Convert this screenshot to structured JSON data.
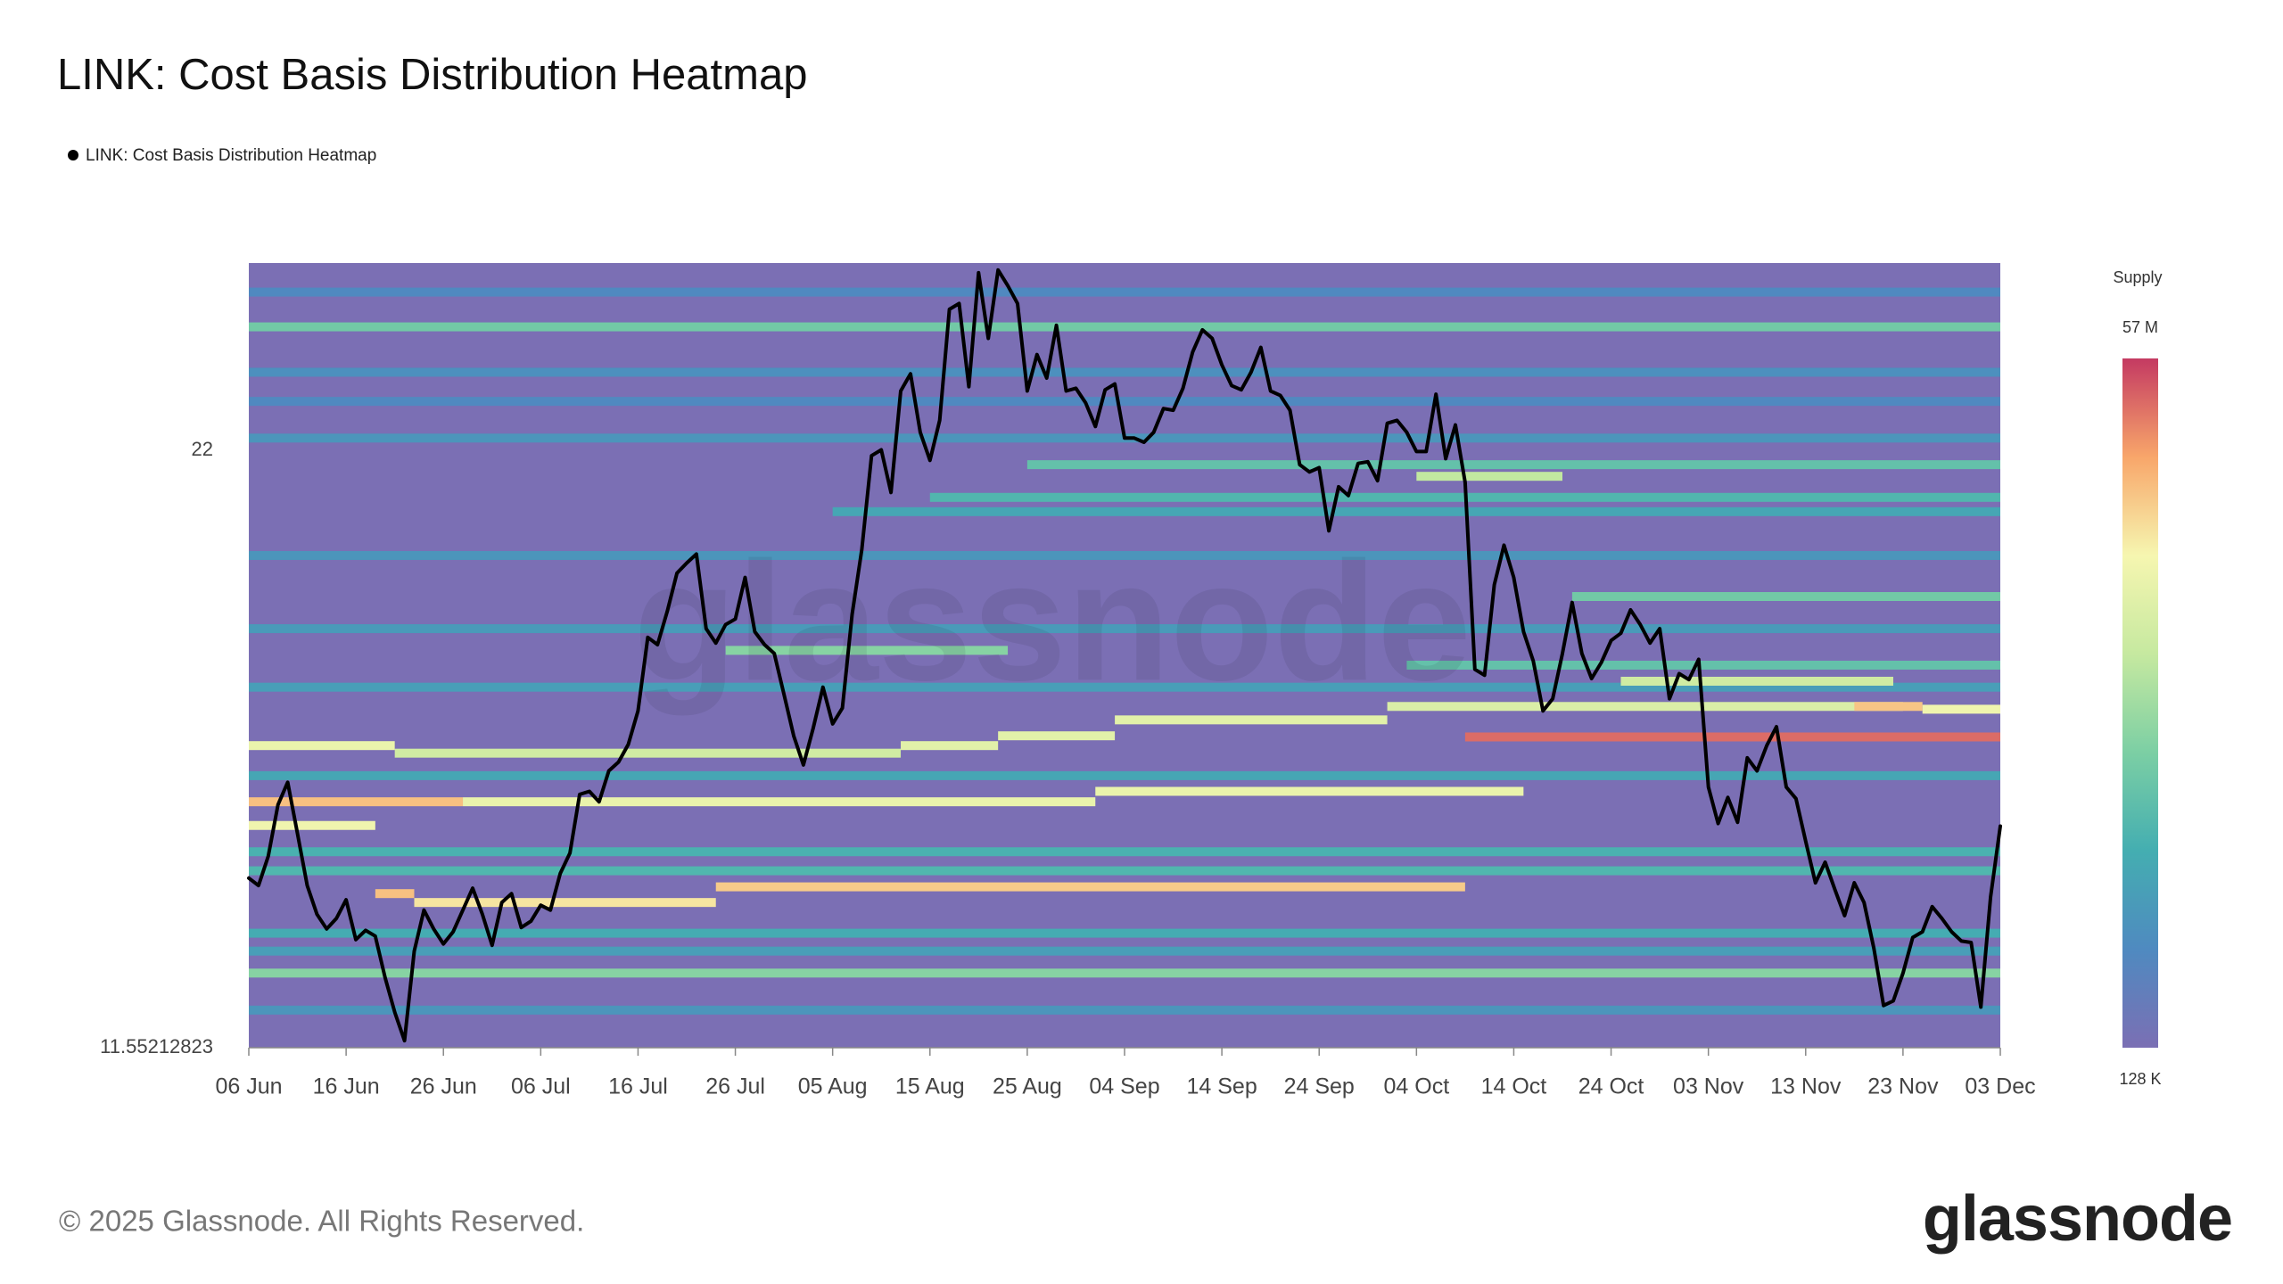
{
  "chart_data": {
    "type": "heatmap",
    "title": "LINK: Cost Basis Distribution Heatmap",
    "x": [
      "06 Jun",
      "07 Jun",
      "08 Jun",
      "09 Jun",
      "10 Jun",
      "11 Jun",
      "12 Jun",
      "13 Jun",
      "14 Jun",
      "15 Jun",
      "16 Jun",
      "17 Jun",
      "18 Jun",
      "19 Jun",
      "20 Jun",
      "21 Jun",
      "22 Jun",
      "23 Jun",
      "24 Jun",
      "25 Jun",
      "26 Jun",
      "27 Jun",
      "28 Jun",
      "29 Jun",
      "30 Jun",
      "01 Jul",
      "02 Jul",
      "03 Jul",
      "04 Jul",
      "05 Jul",
      "06 Jul",
      "07 Jul",
      "08 Jul",
      "09 Jul",
      "10 Jul",
      "11 Jul",
      "12 Jul",
      "13 Jul",
      "14 Jul",
      "15 Jul",
      "16 Jul",
      "17 Jul",
      "18 Jul",
      "19 Jul",
      "20 Jul",
      "21 Jul",
      "22 Jul",
      "23 Jul",
      "24 Jul",
      "25 Jul",
      "26 Jul",
      "27 Jul",
      "28 Jul",
      "29 Jul",
      "30 Jul",
      "31 Jul",
      "01 Aug",
      "02 Aug",
      "03 Aug",
      "04 Aug",
      "05 Aug",
      "06 Aug",
      "07 Aug",
      "08 Aug",
      "09 Aug",
      "10 Aug",
      "11 Aug",
      "12 Aug",
      "13 Aug",
      "14 Aug",
      "15 Aug",
      "16 Aug",
      "17 Aug",
      "18 Aug",
      "19 Aug",
      "20 Aug",
      "21 Aug",
      "22 Aug",
      "23 Aug",
      "24 Aug",
      "25 Aug",
      "26 Aug",
      "27 Aug",
      "28 Aug",
      "29 Aug",
      "30 Aug",
      "31 Aug",
      "01 Sep",
      "02 Sep",
      "03 Sep",
      "04 Sep",
      "05 Sep",
      "06 Sep",
      "07 Sep",
      "08 Sep",
      "09 Sep",
      "10 Sep",
      "11 Sep",
      "12 Sep",
      "13 Sep",
      "14 Sep",
      "15 Sep",
      "16 Sep",
      "17 Sep",
      "18 Sep",
      "19 Sep",
      "20 Sep",
      "21 Sep",
      "22 Sep",
      "23 Sep",
      "24 Sep",
      "25 Sep",
      "26 Sep",
      "27 Sep",
      "28 Sep",
      "29 Sep",
      "30 Sep",
      "01 Oct",
      "02 Oct",
      "03 Oct",
      "04 Oct",
      "05 Oct",
      "06 Oct",
      "07 Oct",
      "08 Oct",
      "09 Oct",
      "10 Oct",
      "11 Oct",
      "12 Oct",
      "13 Oct",
      "14 Oct",
      "15 Oct",
      "16 Oct",
      "17 Oct",
      "18 Oct",
      "19 Oct",
      "20 Oct",
      "21 Oct",
      "22 Oct",
      "23 Oct",
      "24 Oct",
      "25 Oct",
      "26 Oct",
      "27 Oct",
      "28 Oct",
      "29 Oct",
      "30 Oct",
      "31 Oct",
      "01 Nov",
      "02 Nov",
      "03 Nov",
      "04 Nov",
      "05 Nov",
      "06 Nov",
      "07 Nov",
      "08 Nov",
      "09 Nov",
      "10 Nov",
      "11 Nov",
      "12 Nov",
      "13 Nov",
      "14 Nov",
      "15 Nov",
      "16 Nov",
      "17 Nov",
      "18 Nov",
      "19 Nov",
      "20 Nov",
      "21 Nov",
      "22 Nov",
      "23 Nov",
      "24 Nov",
      "25 Nov",
      "26 Nov",
      "27 Nov",
      "28 Nov",
      "29 Nov",
      "30 Nov",
      "01 Dec",
      "02 Dec",
      "03 Dec"
    ],
    "series": [
      {
        "name": "LINK: Cost Basis Distribution Heatmap",
        "color": "#000000",
        "values": [
          13.87,
          13.76,
          14.2,
          15.01,
          15.38,
          14.55,
          13.76,
          13.34,
          13.13,
          13.28,
          13.55,
          12.98,
          13.11,
          13.03,
          12.46,
          12.0,
          11.64,
          12.82,
          13.4,
          13.13,
          12.92,
          13.09,
          13.4,
          13.72,
          13.34,
          12.9,
          13.51,
          13.64,
          13.15,
          13.24,
          13.47,
          13.4,
          13.94,
          14.25,
          15.18,
          15.23,
          15.06,
          15.57,
          15.72,
          16.02,
          16.61,
          17.98,
          17.84,
          18.49,
          19.27,
          19.48,
          19.67,
          18.15,
          17.87,
          18.23,
          18.34,
          19.18,
          18.09,
          17.84,
          17.67,
          16.91,
          16.17,
          15.67,
          16.3,
          17.04,
          16.38,
          16.66,
          18.43,
          19.77,
          21.87,
          22.01,
          21.02,
          23.45,
          23.89,
          22.43,
          21.76,
          22.72,
          25.61,
          25.77,
          23.56,
          26.64,
          24.82,
          26.72,
          26.27,
          25.77,
          23.45,
          24.39,
          23.78,
          25.17,
          23.45,
          23.52,
          23.15,
          22.57,
          23.48,
          23.63,
          22.29,
          22.29,
          22.19,
          22.43,
          23.01,
          22.97,
          23.52,
          24.46,
          25.05,
          24.82,
          24.12,
          23.59,
          23.48,
          23.93,
          24.58,
          23.45,
          23.34,
          22.97,
          21.66,
          21.49,
          21.59,
          20.17,
          21.15,
          20.95,
          21.69,
          21.73,
          21.29,
          22.65,
          22.72,
          22.43,
          21.97,
          21.97,
          23.37,
          21.8,
          22.61,
          21.25,
          17.37,
          17.26,
          19.03,
          19.86,
          19.18,
          18.09,
          17.53,
          16.61,
          16.83,
          17.67,
          18.67,
          17.67,
          17.2,
          17.5,
          17.92,
          18.06,
          18.52,
          18.23,
          17.87,
          18.15,
          16.83,
          17.29,
          17.18,
          17.56,
          15.3,
          14.71,
          15.13,
          14.73,
          15.79,
          15.57,
          16.0,
          16.33,
          15.3,
          15.11,
          14.43,
          13.8,
          14.11,
          13.7,
          13.32,
          13.8,
          13.51,
          12.86,
          12.09,
          12.15,
          12.52,
          13.01,
          13.09,
          13.45,
          13.28,
          13.09,
          12.96,
          12.94,
          12.07,
          13.59,
          14.67
        ]
      }
    ],
    "heatmap": {
      "title": "Supply",
      "scale": "log",
      "lim": [
        128000,
        57000000
      ],
      "ticks": [
        {
          "value": 57000000,
          "label": "57 M"
        },
        {
          "value": 128000,
          "label": "128 K"
        }
      ],
      "colorscale": [
        "#7b6fb4",
        "#4f8ac0",
        "#44aeb1",
        "#7ccfa4",
        "#c6e9a0",
        "#f6f6b0",
        "#f8a66a",
        "#c43a62"
      ],
      "bands": [
        {
          "price": 26.09,
          "from": "06 Jun",
          "to": "03 Dec",
          "supply": 300000
        },
        {
          "price": 23.93,
          "from": "06 Jun",
          "to": "03 Dec",
          "supply": 350000
        },
        {
          "price": 23.19,
          "from": "06 Jun",
          "to": "03 Dec",
          "supply": 300000
        },
        {
          "price": 22.29,
          "from": "06 Jun",
          "to": "03 Dec",
          "supply": 400000
        },
        {
          "price": 19.64,
          "from": "06 Jun",
          "to": "03 Dec",
          "supply": 400000
        },
        {
          "price": 18.15,
          "from": "06 Jun",
          "to": "03 Dec",
          "supply": 450000
        },
        {
          "price": 17.04,
          "from": "06 Jun",
          "to": "03 Dec",
          "supply": 500000
        },
        {
          "price": 12.82,
          "from": "06 Jun",
          "to": "03 Dec",
          "supply": 500000
        },
        {
          "price": 12.03,
          "from": "06 Jun",
          "to": "03 Dec",
          "supply": 400000
        },
        {
          "price": 13.07,
          "from": "06 Jun",
          "to": "03 Dec",
          "supply": 700000
        },
        {
          "price": 15.49,
          "from": "06 Jun",
          "to": "03 Dec",
          "supply": 600000
        },
        {
          "price": 14.27,
          "from": "06 Jun",
          "to": "03 Dec",
          "supply": 800000
        },
        {
          "price": 13.98,
          "from": "06 Jun",
          "to": "03 Dec",
          "supply": 900000
        },
        {
          "price": 20.59,
          "from": "05 Aug",
          "to": "03 Dec",
          "supply": 600000
        },
        {
          "price": 20.91,
          "from": "15 Aug",
          "to": "03 Dec",
          "supply": 900000
        },
        {
          "price": 21.66,
          "from": "25 Aug",
          "to": "03 Dec",
          "supply": 1200000
        },
        {
          "price": 17.45,
          "from": "03 Oct",
          "to": "03 Dec",
          "supply": 1200000
        },
        {
          "price": 25.13,
          "from": "06 Jun",
          "to": "03 Dec",
          "supply": 1500000
        },
        {
          "price": 12.52,
          "from": "06 Jun",
          "to": "03 Dec",
          "supply": 2000000
        },
        {
          "price": 17.73,
          "from": "25 Jul",
          "to": "23 Aug",
          "supply": 2000000
        },
        {
          "price": 18.79,
          "from": "20 Oct",
          "to": "03 Dec",
          "supply": 1500000
        },
        {
          "price": 21.39,
          "from": "04 Oct",
          "to": "19 Oct",
          "supply": 4000000
        },
        {
          "price": 17.15,
          "from": "25 Oct",
          "to": "22 Nov",
          "supply": 5000000
        },
        {
          "price": 16.0,
          "from": "06 Jun",
          "to": "21 Jun",
          "supply": 8000000
        },
        {
          "price": 15.87,
          "from": "21 Jun",
          "to": "12 Aug",
          "supply": 5000000
        },
        {
          "price": 16.0,
          "from": "12 Aug",
          "to": "22 Aug",
          "supply": 7000000
        },
        {
          "price": 16.17,
          "from": "22 Aug",
          "to": "03 Sep",
          "supply": 7000000
        },
        {
          "price": 16.45,
          "from": "03 Sep",
          "to": "01 Oct",
          "supply": 7000000
        },
        {
          "price": 16.69,
          "from": "01 Oct",
          "to": "23 Nov",
          "supply": 6000000
        },
        {
          "price": 15.06,
          "from": "06 Jun",
          "to": "28 Jun",
          "supply": 18000000
        },
        {
          "price": 15.06,
          "from": "28 Jun",
          "to": "01 Sep",
          "supply": 8000000
        },
        {
          "price": 15.23,
          "from": "01 Sep",
          "to": "15 Oct",
          "supply": 8000000
        },
        {
          "price": 14.68,
          "from": "06 Jun",
          "to": "19 Jun",
          "supply": 9000000
        },
        {
          "price": 13.64,
          "from": "19 Jun",
          "to": "23 Jun",
          "supply": 18000000
        },
        {
          "price": 13.51,
          "from": "23 Jun",
          "to": "24 Jul",
          "supply": 12000000
        },
        {
          "price": 13.74,
          "from": "24 Jul",
          "to": "09 Oct",
          "supply": 16000000
        },
        {
          "price": 16.15,
          "from": "09 Oct",
          "to": "03 Dec",
          "supply": 38000000
        },
        {
          "price": 16.69,
          "from": "18 Nov",
          "to": "25 Nov",
          "supply": 17000000
        },
        {
          "price": 16.64,
          "from": "25 Nov",
          "to": "03 Dec",
          "supply": 9000000
        }
      ]
    },
    "xlim": [
      "06 Jun",
      "03 Dec"
    ],
    "xticks": [
      "06 Jun",
      "16 Jun",
      "26 Jun",
      "06 Jul",
      "16 Jul",
      "26 Jul",
      "05 Aug",
      "15 Aug",
      "25 Aug",
      "04 Sep",
      "14 Sep",
      "24 Sep",
      "04 Oct",
      "14 Oct",
      "24 Oct",
      "03 Nov",
      "13 Nov",
      "23 Nov",
      "03 Dec"
    ],
    "ylim": [
      11.55212823,
      26.92
    ],
    "yticks": [
      {
        "value": 11.55212823,
        "label": "11.55212823"
      },
      22
    ],
    "log_y": true
  },
  "watermark": "glassnode",
  "footer": "© 2025 Glassnode. All Rights Reserved.",
  "logo": "glassnode"
}
